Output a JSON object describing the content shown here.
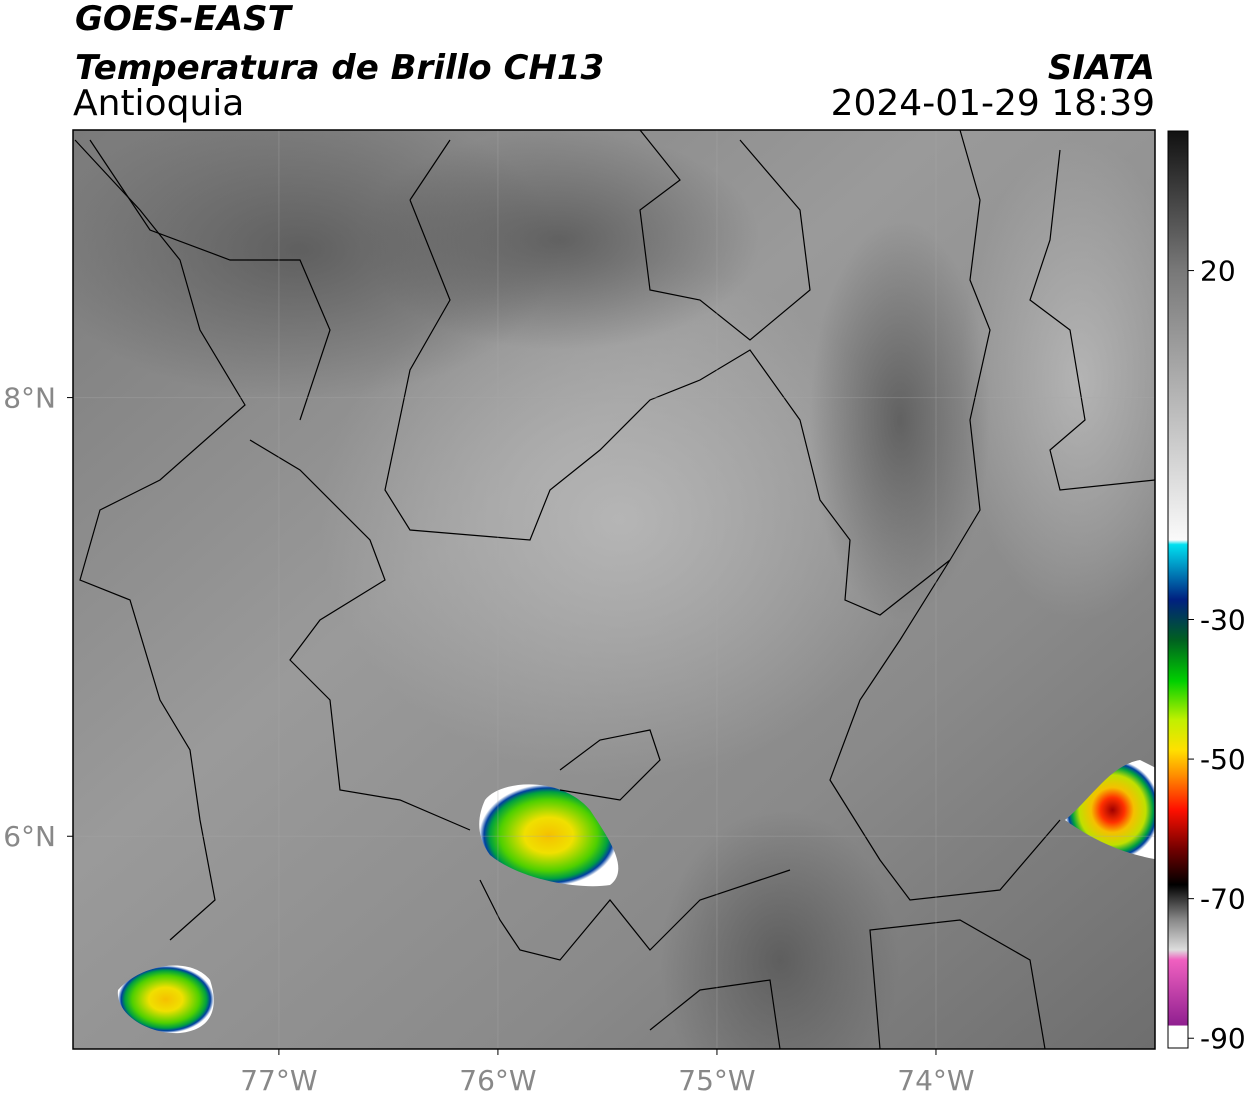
{
  "header": {
    "title": "GOES-EAST",
    "subtitle": "Temperatura de Brillo CH13",
    "region": "Antioquia",
    "source": "SIATA",
    "datetime": "2024-01-29 18:39"
  },
  "map": {
    "lonlim": [
      -77.94,
      -73.0
    ],
    "latlim": [
      5.03,
      9.22
    ],
    "lonticks": [
      {
        "value": -77,
        "label": "77°W"
      },
      {
        "value": -76,
        "label": "76°W"
      },
      {
        "value": -75,
        "label": "75°W"
      },
      {
        "value": -74,
        "label": "74°W"
      }
    ],
    "latticks": [
      {
        "value": 8,
        "label": "8°N"
      },
      {
        "value": 6,
        "label": "6°N"
      }
    ]
  },
  "colorbar": {
    "lim": [
      -91.4,
      40
    ],
    "ticks": [
      20,
      -30,
      -50,
      -70,
      -90
    ]
  }
}
